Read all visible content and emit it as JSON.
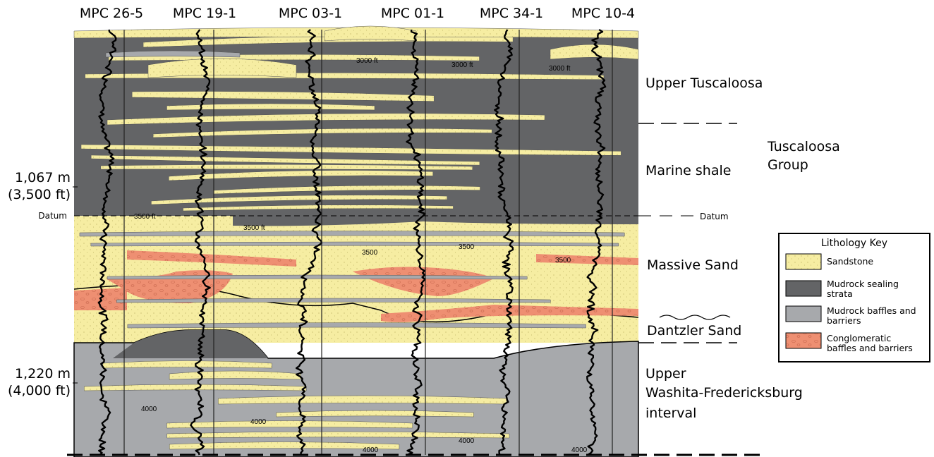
{
  "wells": [
    "MPC 26-5",
    "MPC 19-1",
    "MPC 03-1",
    "MPC 01-1",
    "MPC 34-1",
    "MPC 10-4"
  ],
  "left_labels": {
    "upper_depth": [
      "1,067 m",
      "(3,500 ft)"
    ],
    "datum": "Datum",
    "lower_depth": [
      "1,220 m",
      "(4,000 ft)"
    ]
  },
  "units": {
    "upper_tuscaloosa": "Upper Tuscaloosa",
    "marine_shale": "Marine shale",
    "datum": "Datum",
    "massive_sand": "Massive Sand",
    "dantzler_sand": "Dantzler Sand",
    "washita": [
      "Upper",
      "Washita-Fredericksburg",
      "interval"
    ]
  },
  "group": [
    "Tuscaloosa",
    "Group"
  ],
  "annotations": [
    "3000 ft",
    "3000 ft",
    "3000 ft",
    "3500 ft",
    "3500 ft",
    "3500",
    "3500",
    "3500",
    "4000",
    "4000",
    "4000",
    "4000",
    "4000"
  ],
  "legend": {
    "title": "Lithology Key",
    "items": [
      [
        "Sandstone"
      ],
      [
        "Mudrock sealing",
        "strata"
      ],
      [
        "Mudrock baffles and",
        "barriers"
      ],
      [
        "Conglomeratic",
        "baffles and barriers"
      ]
    ]
  }
}
